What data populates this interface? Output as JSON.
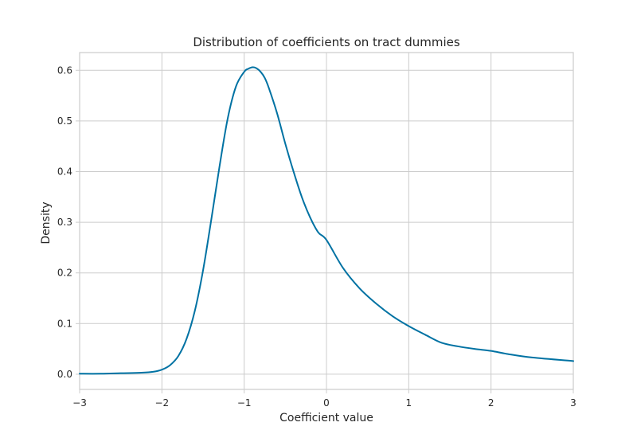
{
  "chart_data": {
    "type": "line",
    "title": "Distribution of coefficients on tract dummies",
    "xlabel": "Coefficient value",
    "ylabel": "Density",
    "xlim": [
      -3,
      3
    ],
    "ylim": [
      -0.03,
      0.635
    ],
    "grid": true,
    "x_ticks": [
      -3,
      -2,
      -1,
      0,
      1,
      2,
      3
    ],
    "x_tick_labels": [
      "−3",
      "−2",
      "−1",
      "0",
      "1",
      "2",
      "3"
    ],
    "y_ticks": [
      0.0,
      0.1,
      0.2,
      0.3,
      0.4,
      0.5,
      0.6
    ],
    "y_tick_labels": [
      "0.0",
      "0.1",
      "0.2",
      "0.3",
      "0.4",
      "0.5",
      "0.6"
    ],
    "colors": {
      "line": "#0072a3"
    },
    "series": [
      {
        "x": [
          -3.0,
          -2.75,
          -2.5,
          -2.25,
          -2.1,
          -2.0,
          -1.9,
          -1.8,
          -1.7,
          -1.6,
          -1.5,
          -1.4,
          -1.3,
          -1.2,
          -1.1,
          -1.0,
          -0.95,
          -0.9,
          -0.85,
          -0.8,
          -0.75,
          -0.7,
          -0.6,
          -0.5,
          -0.4,
          -0.3,
          -0.2,
          -0.1,
          0.0,
          0.2,
          0.4,
          0.6,
          0.8,
          1.0,
          1.2,
          1.4,
          1.6,
          1.8,
          2.0,
          2.2,
          2.5,
          3.0
        ],
        "y": [
          0.001,
          0.001,
          0.002,
          0.003,
          0.005,
          0.009,
          0.018,
          0.036,
          0.07,
          0.125,
          0.205,
          0.305,
          0.41,
          0.505,
          0.568,
          0.597,
          0.603,
          0.606,
          0.604,
          0.597,
          0.585,
          0.565,
          0.515,
          0.455,
          0.4,
          0.35,
          0.31,
          0.28,
          0.265,
          0.21,
          0.17,
          0.14,
          0.115,
          0.095,
          0.078,
          0.062,
          0.055,
          0.05,
          0.046,
          0.04,
          0.033,
          0.026
        ]
      }
    ]
  }
}
